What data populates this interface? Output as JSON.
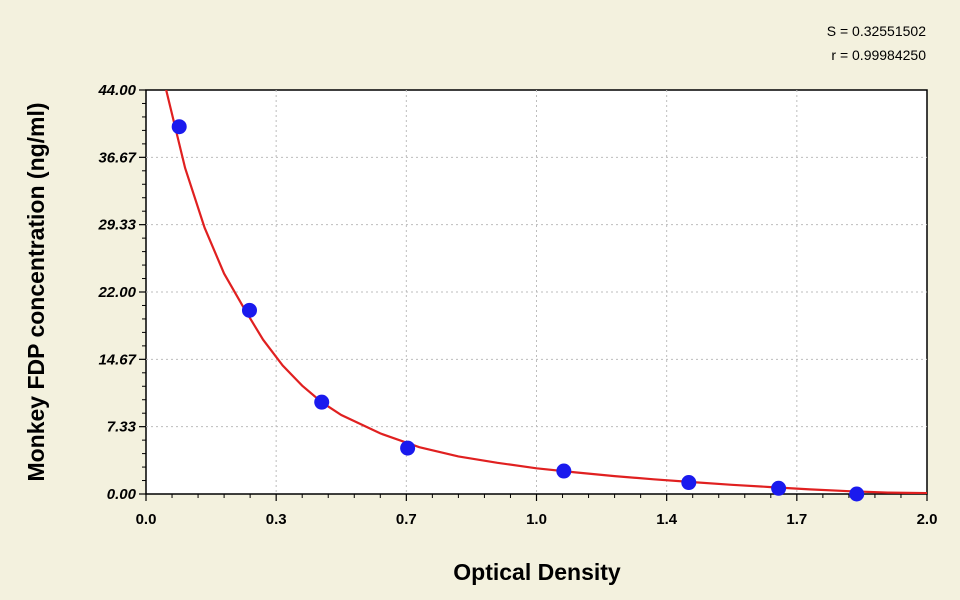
{
  "chart_data": {
    "type": "scatter",
    "xlabel": "Optical Density",
    "ylabel": "Monkey FDP concentration (ng/ml)",
    "xlim": [
      0.0,
      2.0
    ],
    "ylim": [
      0.0,
      44.0
    ],
    "x_ticks": [
      "0.0",
      "0.3",
      "0.7",
      "1.0",
      "1.4",
      "1.7",
      "2.0"
    ],
    "y_ticks": [
      "0.00",
      "7.33",
      "14.67",
      "22.00",
      "29.33",
      "36.67",
      "44.00"
    ],
    "grid": true,
    "stats": {
      "s_label": "S = 0.32551502",
      "r_label": "r = 0.99984250"
    },
    "series": [
      {
        "type": "scatter",
        "color": "#1a1aee",
        "points": [
          {
            "x": 0.085,
            "y": 40.0
          },
          {
            "x": 0.265,
            "y": 20.0
          },
          {
            "x": 0.45,
            "y": 10.0
          },
          {
            "x": 0.67,
            "y": 5.0
          },
          {
            "x": 1.07,
            "y": 2.5
          },
          {
            "x": 1.39,
            "y": 1.25
          },
          {
            "x": 1.62,
            "y": 0.625
          },
          {
            "x": 1.82,
            "y": 0.0
          }
        ]
      },
      {
        "type": "line",
        "color": "#e02020",
        "points": [
          {
            "x": 0.05,
            "y": 44.3
          },
          {
            "x": 0.1,
            "y": 35.5
          },
          {
            "x": 0.15,
            "y": 29.0
          },
          {
            "x": 0.2,
            "y": 24.0
          },
          {
            "x": 0.25,
            "y": 20.3
          },
          {
            "x": 0.3,
            "y": 16.8
          },
          {
            "x": 0.35,
            "y": 14.0
          },
          {
            "x": 0.4,
            "y": 11.8
          },
          {
            "x": 0.45,
            "y": 10.0
          },
          {
            "x": 0.5,
            "y": 8.6
          },
          {
            "x": 0.6,
            "y": 6.6
          },
          {
            "x": 0.7,
            "y": 5.1
          },
          {
            "x": 0.8,
            "y": 4.1
          },
          {
            "x": 0.9,
            "y": 3.4
          },
          {
            "x": 1.0,
            "y": 2.8
          },
          {
            "x": 1.1,
            "y": 2.35
          },
          {
            "x": 1.2,
            "y": 1.95
          },
          {
            "x": 1.3,
            "y": 1.6
          },
          {
            "x": 1.4,
            "y": 1.3
          },
          {
            "x": 1.5,
            "y": 1.0
          },
          {
            "x": 1.6,
            "y": 0.75
          },
          {
            "x": 1.7,
            "y": 0.5
          },
          {
            "x": 1.8,
            "y": 0.3
          },
          {
            "x": 1.9,
            "y": 0.15
          },
          {
            "x": 2.0,
            "y": 0.1
          }
        ]
      }
    ]
  }
}
